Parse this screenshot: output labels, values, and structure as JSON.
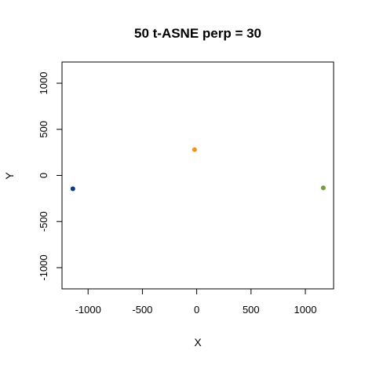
{
  "chart_data": {
    "type": "scatter",
    "title": "50 t-ASNE perp = 30",
    "xlabel": "X",
    "ylabel": "Y",
    "xlim": [
      -1240,
      1260
    ],
    "ylim": [
      -1230,
      1230
    ],
    "xticks": [
      -1000,
      -500,
      0,
      500,
      1000
    ],
    "yticks": [
      -1000,
      -500,
      0,
      500,
      1000
    ],
    "grid": false,
    "points": [
      {
        "x": -1140,
        "y": -145,
        "color": "#0b3c7a"
      },
      {
        "x": -20,
        "y": 280,
        "color": "#f5921b"
      },
      {
        "x": 1165,
        "y": -135,
        "color": "#6aa33a"
      }
    ]
  }
}
